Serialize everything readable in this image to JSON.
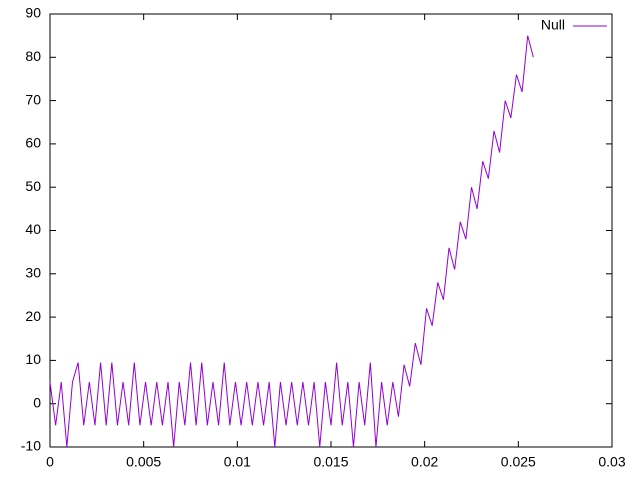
{
  "chart_data": {
    "type": "line",
    "x": [
      0,
      0.0003,
      0.0006,
      0.0009,
      0.0012,
      0.0015,
      0.0018,
      0.0021,
      0.0024,
      0.0027,
      0.003,
      0.0033,
      0.0036,
      0.0039,
      0.0042,
      0.0045,
      0.0048,
      0.0051,
      0.0054,
      0.0057,
      0.006,
      0.0063,
      0.0066,
      0.0069,
      0.0072,
      0.0075,
      0.0078,
      0.0081,
      0.0084,
      0.0087,
      0.009,
      0.0093,
      0.0096,
      0.0099,
      0.0102,
      0.0105,
      0.0108,
      0.0111,
      0.0114,
      0.0117,
      0.012,
      0.0123,
      0.0126,
      0.0129,
      0.0132,
      0.0135,
      0.0138,
      0.0141,
      0.0144,
      0.0147,
      0.015,
      0.0153,
      0.0156,
      0.0159,
      0.0162,
      0.0165,
      0.0168,
      0.0171,
      0.0174,
      0.0177,
      0.018,
      0.0183,
      0.0186,
      0.0189,
      0.0192,
      0.0195,
      0.0198,
      0.0201,
      0.0204,
      0.0207,
      0.021,
      0.0213,
      0.0216,
      0.0219,
      0.0222,
      0.0225,
      0.0228,
      0.0231,
      0.0234,
      0.0237,
      0.024,
      0.0243,
      0.0246,
      0.0249,
      0.0252,
      0.0255,
      0.0258
    ],
    "series": [
      {
        "name": "Null",
        "color": "#9400d3",
        "values": [
          5,
          -5,
          5,
          -10,
          5,
          9.5,
          -5,
          5,
          -5,
          9.5,
          -5,
          9.5,
          -5,
          5,
          -5,
          9.5,
          -5,
          5,
          -5,
          5,
          -5,
          5,
          -10,
          5,
          -5,
          9.5,
          -5,
          9.5,
          -5,
          5,
          -5,
          9.5,
          -5,
          5,
          -5,
          5,
          -5,
          5,
          -5,
          5,
          -10,
          5,
          -5,
          5,
          -5,
          5,
          -5,
          5,
          -10,
          5,
          -5,
          9.5,
          -5,
          5,
          -10,
          5,
          -5,
          9.5,
          -10,
          5,
          -5,
          5,
          -3,
          9,
          4,
          14,
          9,
          22,
          18,
          28,
          24,
          36,
          31,
          42,
          38,
          50,
          45,
          56,
          52,
          63,
          58,
          70,
          66,
          76,
          72,
          85,
          80
        ]
      }
    ],
    "xlim": [
      0,
      0.03
    ],
    "xticks": [
      0,
      0.005,
      0.01,
      0.015,
      0.02,
      0.025,
      0.03
    ],
    "ylim": [
      -10,
      90
    ],
    "yticks": [
      -10,
      0,
      10,
      20,
      30,
      40,
      50,
      60,
      70,
      80,
      90
    ],
    "legend": "top right"
  }
}
